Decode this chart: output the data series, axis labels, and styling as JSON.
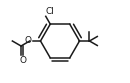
{
  "bg_color": "#ffffff",
  "line_color": "#1a1a1a",
  "line_width": 1.1,
  "cl_label": "Cl",
  "o_label": "O",
  "co_label": "O",
  "figsize": [
    1.3,
    0.83
  ],
  "dpi": 100
}
